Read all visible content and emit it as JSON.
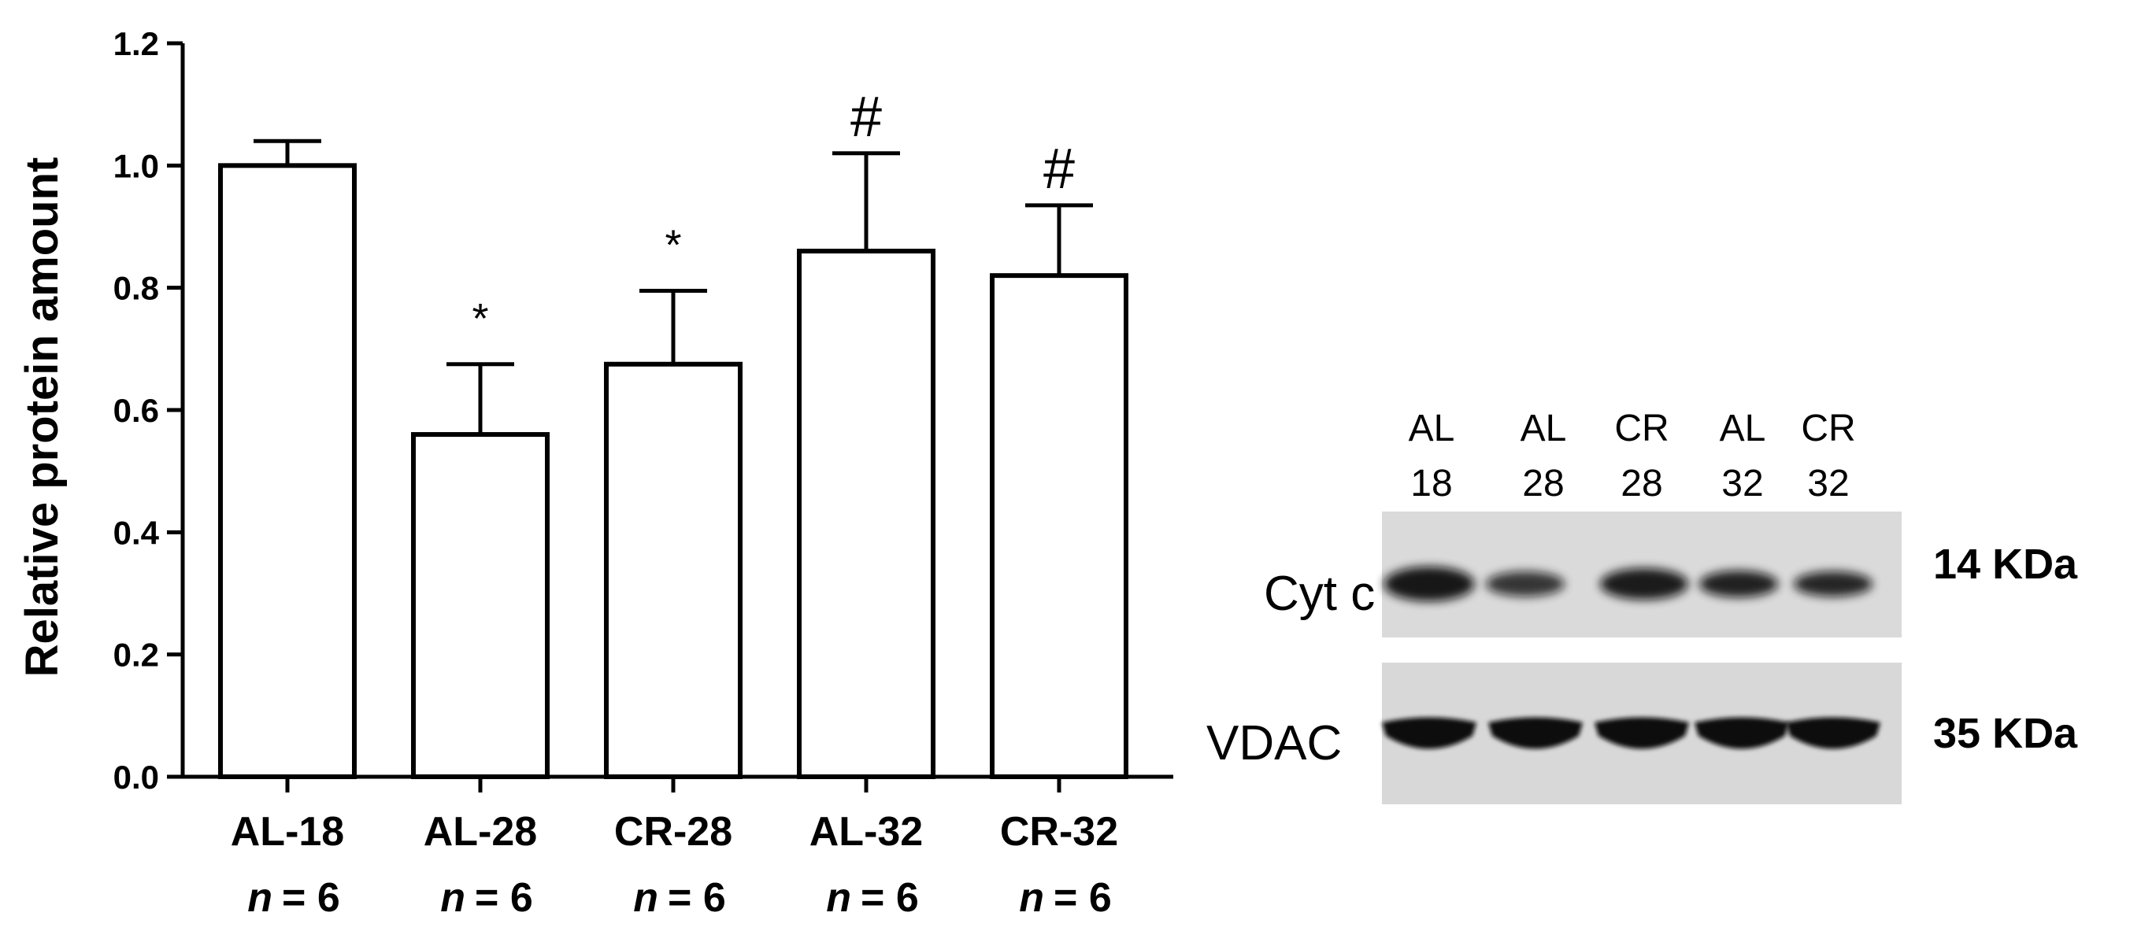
{
  "chart_data": {
    "type": "bar",
    "ylabel": "Relative protein amount",
    "ylim": [
      0.0,
      1.2
    ],
    "yticks": [
      "0.0",
      "0.2",
      "0.4",
      "0.6",
      "0.8",
      "1.0",
      "1.2"
    ],
    "categories": [
      "AL-18",
      "AL-28",
      "CR-28",
      "AL-32",
      "CR-32"
    ],
    "n_prefix": "n",
    "n_values": [
      "= 6",
      "= 6",
      "= 6",
      "= 6",
      "= 6"
    ],
    "values": [
      1.0,
      0.56,
      0.675,
      0.86,
      0.82
    ],
    "errors": [
      0.04,
      0.115,
      0.12,
      0.16,
      0.115
    ],
    "significance": [
      "",
      "*",
      "*",
      "#",
      "#"
    ],
    "grid": false,
    "colors": {
      "bar_fill": "#ffffff",
      "bar_stroke": "#000000"
    }
  },
  "blot": {
    "lanes": [
      {
        "top": "AL",
        "bottom": "18"
      },
      {
        "top": "AL",
        "bottom": "28"
      },
      {
        "top": "CR",
        "bottom": "28"
      },
      {
        "top": "AL",
        "bottom": "32"
      },
      {
        "top": "CR",
        "bottom": "32"
      }
    ],
    "rows": [
      {
        "label": "Cyt c",
        "weight": "14 KDa"
      },
      {
        "label": "VDAC",
        "weight": "35 KDa"
      }
    ]
  }
}
